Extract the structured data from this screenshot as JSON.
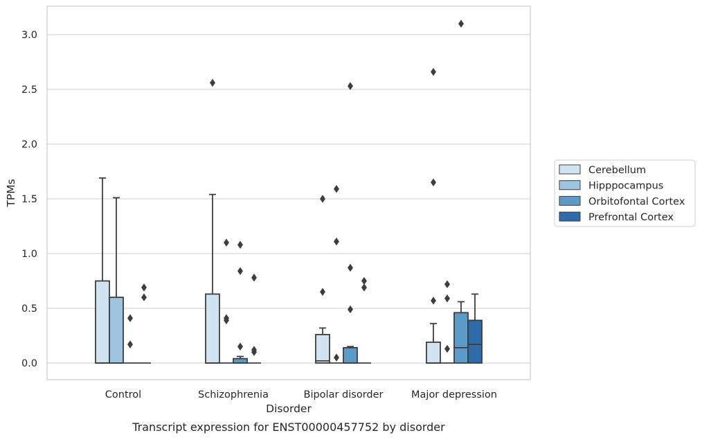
{
  "chart_data": {
    "type": "box",
    "title": "",
    "caption": "Transcript expression for ENST00000457752 by disorder",
    "xlabel": "Disorder",
    "ylabel": "TPMs",
    "ylim": [
      -0.15,
      3.25
    ],
    "yticks": [
      0.0,
      0.5,
      1.0,
      1.5,
      2.0,
      2.5,
      3.0
    ],
    "ytick_labels": [
      "0.0",
      "0.5",
      "1.0",
      "1.5",
      "2.0",
      "2.5",
      "3.0"
    ],
    "grid": "horizontal",
    "legend_position": "right",
    "categories": [
      "Control",
      "Schizophrenia",
      "Bipolar disorder",
      "Major depression"
    ],
    "series": [
      {
        "name": "Cerebellum",
        "color": "#d1e2f0",
        "boxes": [
          {
            "q1": 0.0,
            "median": 0.0,
            "q3": 0.75,
            "whisker_low": 0.0,
            "whisker_high": 1.69,
            "outliers": []
          },
          {
            "q1": 0.0,
            "median": 0.0,
            "q3": 0.63,
            "whisker_low": 0.0,
            "whisker_high": 1.54,
            "outliers": [
              2.56
            ]
          },
          {
            "q1": 0.0,
            "median": 0.02,
            "q3": 0.26,
            "whisker_low": 0.0,
            "whisker_high": 0.32,
            "outliers": [
              0.65,
              1.5
            ]
          },
          {
            "q1": 0.0,
            "median": 0.0,
            "q3": 0.19,
            "whisker_low": 0.0,
            "whisker_high": 0.36,
            "outliers": [
              0.57,
              1.65,
              2.66
            ]
          }
        ]
      },
      {
        "name": "Hipppocampus",
        "color": "#9dc4e0",
        "boxes": [
          {
            "q1": 0.0,
            "median": 0.0,
            "q3": 0.6,
            "whisker_low": 0.0,
            "whisker_high": 1.51,
            "outliers": []
          },
          {
            "q1": 0.0,
            "median": 0.0,
            "q3": 0.0,
            "whisker_low": 0.0,
            "whisker_high": 0.0,
            "outliers": [
              0.39,
              0.41,
              1.1
            ]
          },
          {
            "q1": 0.0,
            "median": 0.0,
            "q3": 0.0,
            "whisker_low": 0.0,
            "whisker_high": 0.0,
            "outliers": [
              0.05,
              1.11,
              1.59
            ]
          },
          {
            "q1": 0.0,
            "median": 0.0,
            "q3": 0.0,
            "whisker_low": 0.0,
            "whisker_high": 0.0,
            "outliers": [
              0.13,
              0.59,
              0.72
            ]
          }
        ]
      },
      {
        "name": "Orbitofontal Cortex",
        "color": "#5a9bc8",
        "boxes": [
          {
            "q1": 0.0,
            "median": 0.0,
            "q3": 0.0,
            "whisker_low": 0.0,
            "whisker_high": 0.0,
            "outliers": [
              0.17,
              0.41
            ]
          },
          {
            "q1": 0.0,
            "median": 0.0,
            "q3": 0.04,
            "whisker_low": 0.0,
            "whisker_high": 0.06,
            "outliers": [
              0.15,
              0.84,
              1.08
            ]
          },
          {
            "q1": 0.0,
            "median": 0.0,
            "q3": 0.14,
            "whisker_low": 0.0,
            "whisker_high": 0.15,
            "outliers": [
              0.49,
              0.87,
              2.53
            ]
          },
          {
            "q1": 0.0,
            "median": 0.14,
            "q3": 0.46,
            "whisker_low": 0.0,
            "whisker_high": 0.56,
            "outliers": [
              3.1
            ]
          }
        ]
      },
      {
        "name": "Prefrontal Cortex",
        "color": "#2f6ba8",
        "boxes": [
          {
            "q1": 0.0,
            "median": 0.0,
            "q3": 0.0,
            "whisker_low": 0.0,
            "whisker_high": 0.0,
            "outliers": [
              0.6,
              0.69
            ]
          },
          {
            "q1": 0.0,
            "median": 0.0,
            "q3": 0.0,
            "whisker_low": 0.0,
            "whisker_high": 0.0,
            "outliers": [
              0.1,
              0.12,
              0.78
            ]
          },
          {
            "q1": 0.0,
            "median": 0.0,
            "q3": 0.0,
            "whisker_low": 0.0,
            "whisker_high": 0.0,
            "outliers": [
              0.69,
              0.75
            ]
          },
          {
            "q1": 0.0,
            "median": 0.17,
            "q3": 0.39,
            "whisker_low": 0.0,
            "whisker_high": 0.63,
            "outliers": []
          }
        ]
      }
    ]
  }
}
